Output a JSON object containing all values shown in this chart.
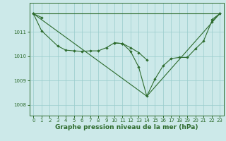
{
  "background_color": "#cce9e9",
  "grid_color": "#99cccc",
  "line_color": "#2d6b2d",
  "xlabel": "Graphe pression niveau de la mer (hPa)",
  "xlabel_fontsize": 6.5,
  "ylim": [
    1007.55,
    1012.2
  ],
  "xlim": [
    -0.5,
    23.5
  ],
  "yticks": [
    1008,
    1009,
    1010,
    1011
  ],
  "xticks": [
    0,
    1,
    2,
    3,
    4,
    5,
    6,
    7,
    8,
    9,
    10,
    11,
    12,
    13,
    14,
    15,
    16,
    17,
    18,
    19,
    20,
    21,
    22,
    23
  ],
  "tick_fontsize": 5.0,
  "series_marked": [
    {
      "x": [
        0,
        1
      ],
      "y": [
        1011.75,
        1011.6
      ]
    },
    {
      "x": [
        22,
        23
      ],
      "y": [
        1011.5,
        1011.75
      ]
    },
    {
      "x": [
        0,
        1,
        3,
        4,
        5,
        6,
        7,
        8,
        9,
        10,
        11,
        12,
        13,
        14
      ],
      "y": [
        1011.75,
        1011.05,
        1010.42,
        1010.25,
        1010.22,
        1010.2,
        1010.22,
        1010.22,
        1010.35,
        1010.55,
        1010.52,
        1010.35,
        1010.15,
        1009.85
      ]
    },
    {
      "x": [
        10,
        11,
        12,
        13,
        14,
        15,
        16,
        17,
        18,
        19,
        20,
        21,
        22,
        23
      ],
      "y": [
        1010.55,
        1010.52,
        1010.2,
        1009.55,
        1008.35,
        1009.05,
        1009.6,
        1009.9,
        1009.95,
        1009.95,
        1010.3,
        1010.62,
        1011.42,
        1011.75
      ]
    }
  ],
  "series_plain": [
    {
      "x": [
        0,
        23
      ],
      "y": [
        1011.75,
        1011.75
      ]
    },
    {
      "x": [
        0,
        14,
        23
      ],
      "y": [
        1011.75,
        1008.35,
        1011.75
      ]
    }
  ]
}
